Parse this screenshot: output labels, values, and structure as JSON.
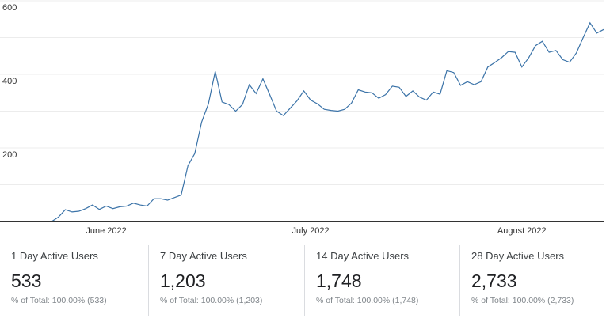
{
  "chart_data": {
    "type": "line",
    "title": "",
    "xlabel": "",
    "ylabel": "",
    "ylim": [
      0,
      600
    ],
    "y_ticks": [
      200,
      400,
      600
    ],
    "y_tick_labels": [
      "200",
      "400",
      "600"
    ],
    "x_start_label": "2022-05-17",
    "x_tick_labels": [
      "June 2022",
      "July 2022",
      "August 2022"
    ],
    "x_tick_dates": [
      "2022-06-01",
      "2022-07-01",
      "2022-08-01"
    ],
    "line_color": "#3b73a8",
    "grid": true,
    "series": [
      {
        "x": [
          "2022-05-17",
          "2022-05-18",
          "2022-05-19",
          "2022-05-20",
          "2022-05-21",
          "2022-05-22",
          "2022-05-23",
          "2022-05-24",
          "2022-05-25",
          "2022-05-26",
          "2022-05-27",
          "2022-05-28",
          "2022-05-29",
          "2022-05-30",
          "2022-05-31",
          "2022-06-01",
          "2022-06-02",
          "2022-06-03",
          "2022-06-04",
          "2022-06-05",
          "2022-06-06",
          "2022-06-07",
          "2022-06-08",
          "2022-06-09",
          "2022-06-10",
          "2022-06-11",
          "2022-06-12",
          "2022-06-13",
          "2022-06-14",
          "2022-06-15",
          "2022-06-16",
          "2022-06-17",
          "2022-06-18",
          "2022-06-19",
          "2022-06-20",
          "2022-06-21",
          "2022-06-22",
          "2022-06-23",
          "2022-06-24",
          "2022-06-25",
          "2022-06-26",
          "2022-06-27",
          "2022-06-28",
          "2022-06-29",
          "2022-06-30",
          "2022-07-01",
          "2022-07-02",
          "2022-07-03",
          "2022-07-04",
          "2022-07-05",
          "2022-07-06",
          "2022-07-07",
          "2022-07-08",
          "2022-07-09",
          "2022-07-10",
          "2022-07-11",
          "2022-07-12",
          "2022-07-13",
          "2022-07-14",
          "2022-07-15",
          "2022-07-16",
          "2022-07-17",
          "2022-07-18",
          "2022-07-19",
          "2022-07-20",
          "2022-07-21",
          "2022-07-22",
          "2022-07-23",
          "2022-07-24",
          "2022-07-25",
          "2022-07-26",
          "2022-07-27",
          "2022-07-28",
          "2022-07-29",
          "2022-07-30",
          "2022-07-31",
          "2022-08-01",
          "2022-08-02",
          "2022-08-03",
          "2022-08-04",
          "2022-08-05",
          "2022-08-06",
          "2022-08-07",
          "2022-08-08",
          "2022-08-09",
          "2022-08-10",
          "2022-08-11",
          "2022-08-12",
          "2022-08-13"
        ],
        "values": [
          0,
          0,
          0,
          0,
          0,
          0,
          0,
          0,
          12,
          32,
          26,
          28,
          35,
          45,
          33,
          42,
          35,
          40,
          42,
          50,
          45,
          42,
          62,
          62,
          58,
          65,
          72,
          152,
          185,
          270,
          320,
          408,
          325,
          318,
          300,
          318,
          372,
          348,
          388,
          345,
          300,
          288,
          308,
          328,
          355,
          330,
          320,
          305,
          302,
          300,
          305,
          322,
          358,
          352,
          350,
          335,
          345,
          368,
          365,
          340,
          355,
          338,
          330,
          352,
          346,
          410,
          405,
          370,
          380,
          372,
          380,
          420,
          432,
          445,
          462,
          460,
          420,
          445,
          478,
          490,
          460,
          465,
          440,
          433,
          458,
          500,
          540,
          512,
          522
        ]
      }
    ]
  },
  "metrics": [
    {
      "label": "1 Day Active Users",
      "value": "533",
      "sub": "% of Total: 100.00% (533)"
    },
    {
      "label": "7 Day Active Users",
      "value": "1,203",
      "sub": "% of Total: 100.00% (1,203)"
    },
    {
      "label": "14 Day Active Users",
      "value": "1,748",
      "sub": "% of Total: 100.00% (1,748)"
    },
    {
      "label": "28 Day Active Users",
      "value": "2,733",
      "sub": "% of Total: 100.00% (2,733)"
    }
  ]
}
